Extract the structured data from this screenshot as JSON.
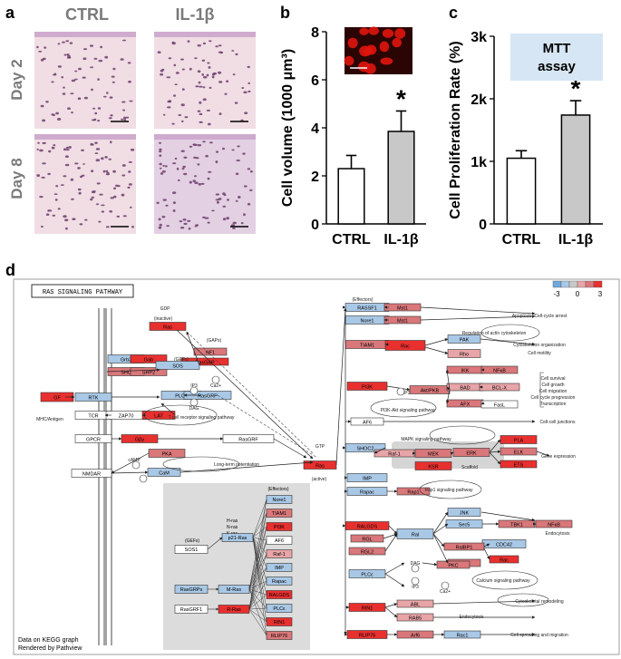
{
  "panel_letters": {
    "a": "a",
    "b": "b",
    "c": "c",
    "d": "d"
  },
  "panel_a": {
    "col_headers": [
      "CTRL",
      "IL-1β"
    ],
    "row_headers": [
      "Day 2",
      "Day 8"
    ]
  },
  "colors": {
    "red": "#e8302f",
    "light_red": "#d9777a",
    "pink": "#e8a5a7",
    "blue": "#6fa8dc",
    "light_blue": "#a9c8e6",
    "white": "#ffffff",
    "bar_grey": "#c8c8c8",
    "stain_bg": "#f1dde4",
    "stain_dot": "#6d3f6d",
    "fluor_bg": "#2b0504",
    "fluor_cell": "#e0150e",
    "mtt_box": "#d6e6f4",
    "scaffold": "#d5d5d5",
    "ras_box_bg": "#dcdcdc"
  },
  "chart_data": [
    {
      "type": "bar",
      "panel": "b",
      "categories": [
        "CTRL",
        "IL-1β"
      ],
      "values": [
        2.3,
        3.85
      ],
      "errors": [
        0.55,
        0.85
      ],
      "ylabel": "Cell volume (1000 μm³)",
      "ylim": [
        0,
        8
      ],
      "yticks": [
        "0",
        "2",
        "4",
        "6",
        "8"
      ],
      "significance": [
        "",
        "*"
      ]
    },
    {
      "type": "bar",
      "panel": "c",
      "categories": [
        "CTRL",
        "IL-1β"
      ],
      "values": [
        1050,
        1740
      ],
      "errors": [
        120,
        230
      ],
      "ylabel": "Cell Proliferation Rate (%)",
      "ylim": [
        0,
        3000
      ],
      "yticks": [
        "0",
        "1k",
        "2k",
        "3k"
      ],
      "significance": [
        "",
        "*"
      ],
      "annotation": [
        "MTT",
        "assay"
      ]
    }
  ],
  "pathway": {
    "title": "RAS SIGNALING PATHWAY",
    "legend_ticks": [
      "-3",
      "0",
      "3"
    ],
    "footer": [
      "Data on KEGG graph",
      "Rendered by Pathview"
    ],
    "nodes": [
      {
        "label": "Ras",
        "color": "red"
      },
      {
        "label": "GDP",
        "color": "none"
      },
      {
        "label": "(inactive)",
        "color": "none"
      },
      {
        "label": "(GAPs)",
        "color": "none"
      },
      {
        "label": "NF1",
        "color": "light_red"
      },
      {
        "label": "RasGAP",
        "color": "red"
      },
      {
        "label": "Grb2",
        "color": "light_blue"
      },
      {
        "label": "Gab",
        "color": "red"
      },
      {
        "label": "SHC",
        "color": "light_red"
      },
      {
        "label": "SHP2",
        "color": "light_red"
      },
      {
        "label": "(GEFs)",
        "color": "none"
      },
      {
        "label": "SOS",
        "color": "light_blue"
      },
      {
        "label": "GF",
        "color": "red"
      },
      {
        "label": "RTK",
        "color": "light_blue"
      },
      {
        "label": "MHC/Antigen",
        "color": "none"
      },
      {
        "label": "TCR",
        "color": "white"
      },
      {
        "label": "ZAP70",
        "color": "white"
      },
      {
        "label": "LAT",
        "color": "red"
      },
      {
        "label": "PLCγ",
        "color": "light_blue"
      },
      {
        "label": "RasGRP",
        "color": "light_blue"
      },
      {
        "label": "IP3",
        "color": "none"
      },
      {
        "label": "DAG",
        "color": "none"
      },
      {
        "label": "Ca2+",
        "color": "none"
      },
      {
        "label": "T cell receptor signaling pathway",
        "color": "none"
      },
      {
        "label": "GPCR",
        "color": "white"
      },
      {
        "label": "Gβγ",
        "color": "red"
      },
      {
        "label": "RasGRF",
        "color": "white"
      },
      {
        "label": "PKA",
        "color": "light_red"
      },
      {
        "label": "cAMP",
        "color": "none"
      },
      {
        "label": "NMDAR",
        "color": "white"
      },
      {
        "label": "CaM",
        "color": "light_blue"
      },
      {
        "label": "Long-term potentiation",
        "color": "none"
      },
      {
        "label": "GTP",
        "color": "none"
      },
      {
        "label": "Ras",
        "color": "red"
      },
      {
        "label": "(active)",
        "color": "none"
      },
      {
        "label": "(Effectors)",
        "color": "none"
      },
      {
        "label": "RASSF1",
        "color": "light_blue"
      },
      {
        "label": "Mst1",
        "color": "light_red"
      },
      {
        "label": "Nore1",
        "color": "light_blue"
      },
      {
        "label": "Mst1",
        "color": "light_red"
      },
      {
        "label": "Apoptosis, Cell-cycle arrest",
        "color": "none"
      },
      {
        "label": "TIAM1",
        "color": "light_red"
      },
      {
        "label": "Rac",
        "color": "red"
      },
      {
        "label": "PAK",
        "color": "light_blue"
      },
      {
        "label": "Rho",
        "color": "pink"
      },
      {
        "label": "Regulation of actin cytoskeleton",
        "color": "none"
      },
      {
        "label": "Cytoskeleton organization",
        "color": "none"
      },
      {
        "label": "Cell motility",
        "color": "none"
      },
      {
        "label": "PI3K",
        "color": "red"
      },
      {
        "label": "PIP3",
        "color": "none"
      },
      {
        "label": "Akt/PKB",
        "color": "light_red"
      },
      {
        "label": "IKK",
        "color": "light_red"
      },
      {
        "label": "NFκB",
        "color": "light_red"
      },
      {
        "label": "BAD",
        "color": "pink"
      },
      {
        "label": "BCL-X",
        "color": "pink"
      },
      {
        "label": "AFX",
        "color": "light_red"
      },
      {
        "label": "FasL",
        "color": "white"
      },
      {
        "label": "PI3K-Akt signaling pathway",
        "color": "none"
      },
      {
        "label": "Cell survival",
        "color": "none"
      },
      {
        "label": "Cell growth",
        "color": "none"
      },
      {
        "label": "Cell migration",
        "color": "none"
      },
      {
        "label": "Cell cycle progression",
        "color": "none"
      },
      {
        "label": "Transcription",
        "color": "none"
      },
      {
        "label": "AF6",
        "color": "white"
      },
      {
        "label": "Cell-cell junctions",
        "color": "none"
      },
      {
        "label": "SHOC2",
        "color": "light_blue"
      },
      {
        "label": "Raf-1",
        "color": "pink"
      },
      {
        "label": "MEK",
        "color": "light_red"
      },
      {
        "label": "ERK",
        "color": "light_red"
      },
      {
        "label": "PLA",
        "color": "red"
      },
      {
        "label": "ELK",
        "color": "light_red"
      },
      {
        "label": "ETS",
        "color": "red"
      },
      {
        "label": "Gene expression",
        "color": "none"
      },
      {
        "label": "MAPK signaling pathway",
        "color": "none"
      },
      {
        "label": "KSR",
        "color": "red"
      },
      {
        "label": "Scaffold",
        "color": "none"
      },
      {
        "label": "IMP",
        "color": "light_blue"
      },
      {
        "label": "Rapac",
        "color": "light_blue"
      },
      {
        "label": "Rap1",
        "color": "light_red"
      },
      {
        "label": "Rap1 signaling pathway",
        "color": "none"
      },
      {
        "label": "RALGDS",
        "color": "red"
      },
      {
        "label": "RGL",
        "color": "light_red"
      },
      {
        "label": "RGL2",
        "color": "light_red"
      },
      {
        "label": "Ral",
        "color": "light_blue"
      },
      {
        "label": "JNK",
        "color": "light_blue"
      },
      {
        "label": "Sec5",
        "color": "light_blue"
      },
      {
        "label": "TBK1",
        "color": "light_red"
      },
      {
        "label": "NFκB",
        "color": "light_red"
      },
      {
        "label": "CDC42",
        "color": "light_blue"
      },
      {
        "label": "RalBP1",
        "color": "light_red"
      },
      {
        "label": "Rac",
        "color": "red"
      },
      {
        "label": "PLD",
        "color": "light_red"
      },
      {
        "label": "Endocytosis",
        "color": "none"
      },
      {
        "label": "PLCε",
        "color": "light_blue"
      },
      {
        "label": "DAG",
        "color": "none"
      },
      {
        "label": "IP3",
        "color": "none"
      },
      {
        "label": "PKC",
        "color": "light_red"
      },
      {
        "label": "Ca2+",
        "color": "none"
      },
      {
        "label": "Calcium signaling pathway",
        "color": "none"
      },
      {
        "label": "RIN1",
        "color": "red"
      },
      {
        "label": "ABL",
        "color": "pink"
      },
      {
        "label": "RAB5",
        "color": "pink"
      },
      {
        "label": "Cytoskeletal remodeling",
        "color": "none"
      },
      {
        "label": "Endocytosis",
        "color": "none"
      },
      {
        "label": "RLIP76",
        "color": "red"
      },
      {
        "label": "Arf6",
        "color": "light_red"
      },
      {
        "label": "Rac1",
        "color": "light_blue"
      },
      {
        "label": "Cell spreading and migration",
        "color": "none"
      }
    ],
    "inset": {
      "effectors_header": "(Effectors)",
      "gefs_header": "(GEFs)",
      "isoforms": [
        "H-ras",
        "N-ras",
        "K-ras"
      ],
      "left_nodes": [
        {
          "label": "SOS1",
          "color": "white"
        },
        {
          "label": "RasGRPs",
          "color": "light_blue"
        },
        {
          "label": "RasGRF1",
          "color": "white"
        }
      ],
      "mid_nodes": [
        {
          "label": "p21-Ras",
          "color": "light_blue"
        },
        {
          "label": "M-Ras",
          "color": "light_blue"
        },
        {
          "label": "R-Ras",
          "color": "red"
        }
      ],
      "effectors": [
        {
          "label": "Nore1",
          "color": "light_blue"
        },
        {
          "label": "TIAM1",
          "color": "light_red"
        },
        {
          "label": "PI3K",
          "color": "red"
        },
        {
          "label": "AF6",
          "color": "white"
        },
        {
          "label": "Raf-1",
          "color": "pink"
        },
        {
          "label": "IMP",
          "color": "light_blue"
        },
        {
          "label": "Rapac",
          "color": "light_blue"
        },
        {
          "label": "RALGDS",
          "color": "red"
        },
        {
          "label": "PLCε",
          "color": "light_blue"
        },
        {
          "label": "RIN1",
          "color": "red"
        },
        {
          "label": "RLIP76",
          "color": "light_red"
        }
      ]
    }
  }
}
